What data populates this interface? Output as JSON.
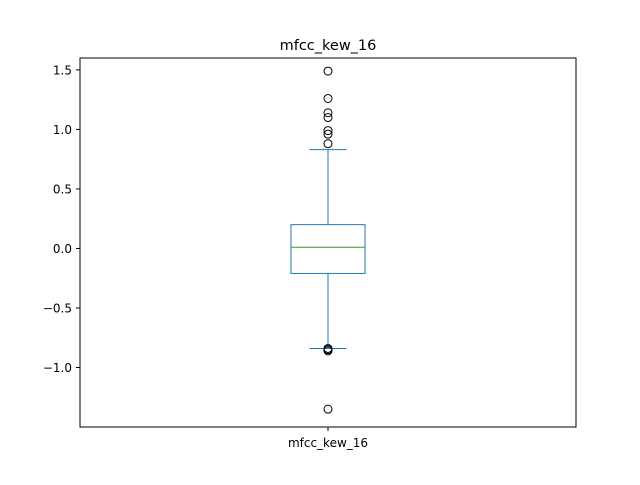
{
  "chart_data": {
    "type": "box",
    "title": "mfcc_kew_16",
    "xlabel": "",
    "ylabel": "",
    "categories": [
      "mfcc_kew_16"
    ],
    "ylim": [
      -1.5,
      1.6
    ],
    "yticks": [
      {
        "value": -1.0,
        "label": "−1.0"
      },
      {
        "value": -0.5,
        "label": "−0.5"
      },
      {
        "value": 0.0,
        "label": "0.0"
      },
      {
        "value": 0.5,
        "label": "0.5"
      },
      {
        "value": 1.0,
        "label": "1.0"
      },
      {
        "value": 1.5,
        "label": "1.5"
      }
    ],
    "box": {
      "q1": -0.21,
      "median": 0.01,
      "q3": 0.2,
      "whisker_low": -0.84,
      "whisker_high": 0.83,
      "outliers": [
        1.49,
        1.26,
        1.14,
        1.1,
        0.99,
        0.96,
        0.88,
        -0.84,
        -0.85,
        -0.86,
        -1.35
      ]
    },
    "grid": false,
    "legend": "none",
    "colors": {
      "box": "#1f77b4",
      "median": "#2ca02c",
      "outlier": "#000000",
      "axes": "#000000"
    }
  }
}
